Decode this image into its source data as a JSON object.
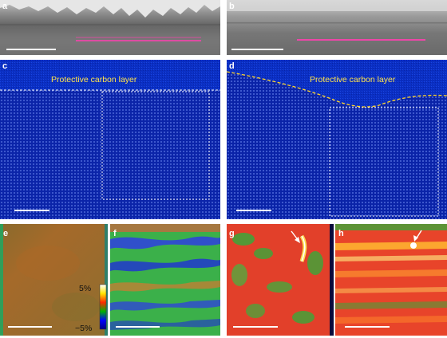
{
  "figure": {
    "panels": [
      {
        "id": "a",
        "label": "a",
        "label_color": "#ffffff"
      },
      {
        "id": "b",
        "label": "b",
        "label_color": "#ffffff"
      },
      {
        "id": "c",
        "label": "c",
        "label_color": "#ffffff"
      },
      {
        "id": "d",
        "label": "d",
        "label_color": "#ffffff"
      },
      {
        "id": "e",
        "label": "e",
        "label_color": "#ffffff"
      },
      {
        "id": "f",
        "label": "f",
        "label_color": "#ffffff"
      },
      {
        "id": "g",
        "label": "g",
        "label_color": "#ffffff"
      },
      {
        "id": "h",
        "label": "h",
        "label_color": "#ffffff"
      }
    ],
    "annotations": {
      "c_caption": "Protective carbon layer",
      "d_caption": "Protective carbon layer",
      "caption_color": "#ffe44a"
    },
    "colorbar": {
      "max_label": "5%",
      "min_label": "−5%",
      "max_value": 5,
      "min_value": -5,
      "unit": "%",
      "colors": [
        "#ffffff",
        "#ffe600",
        "#ff2a00",
        "#00b300",
        "#0000ff",
        "#000080"
      ]
    },
    "accent_colors": {
      "pink_line": "#ff3fb0",
      "scale_bar": "#ffffff",
      "dashed_box": "#ffffff",
      "dashed_boundary": "#ffd62a",
      "arrow": "#ffffff",
      "blue_bg": "#0a2fc4",
      "sem_gray": "#9a9a9a"
    }
  }
}
